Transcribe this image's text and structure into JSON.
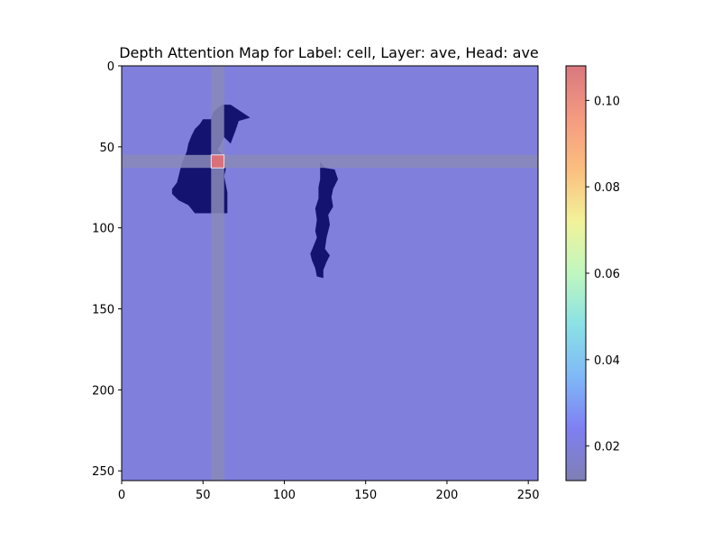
{
  "chart_data": {
    "type": "heatmap",
    "title": "Depth Attention Map for Label: cell, Layer: ave, Head: ave",
    "xlabel": "",
    "ylabel": "",
    "xlim": [
      0,
      256
    ],
    "ylim": [
      256,
      0
    ],
    "x_ticks": [
      0,
      50,
      100,
      150,
      200,
      250
    ],
    "y_ticks": [
      0,
      50,
      100,
      150,
      200,
      250
    ],
    "background_color": "#8080dc",
    "attention_value_background": 0.012,
    "highlight": {
      "row": 59,
      "col": 59,
      "value": 0.108,
      "crosshair_band_width": 8,
      "band_color": "#8a8ab8",
      "cell_color": "#d9707a"
    },
    "mask_regions": [
      {
        "name": "region-left",
        "color": "#141470",
        "outline": [
          [
            67,
            24
          ],
          [
            79,
            32
          ],
          [
            72,
            34
          ],
          [
            70,
            40
          ],
          [
            67,
            48
          ],
          [
            63,
            44
          ],
          [
            59,
            52
          ],
          [
            63,
            56
          ],
          [
            64,
            64
          ],
          [
            63,
            68
          ],
          [
            65,
            78
          ],
          [
            65,
            91
          ],
          [
            45,
            91
          ],
          [
            41,
            86
          ],
          [
            35,
            83
          ],
          [
            31,
            79
          ],
          [
            31,
            76
          ],
          [
            34,
            72
          ],
          [
            37,
            60
          ],
          [
            40,
            53
          ],
          [
            41,
            48
          ],
          [
            43,
            43
          ],
          [
            45,
            39
          ],
          [
            48,
            36
          ],
          [
            50,
            33
          ],
          [
            55,
            33
          ],
          [
            56,
            29
          ],
          [
            59,
            26
          ],
          [
            62,
            24
          ]
        ]
      },
      {
        "name": "region-right",
        "color": "#141470",
        "outline": [
          [
            122,
            59
          ],
          [
            125,
            63
          ],
          [
            131,
            64
          ],
          [
            133,
            70
          ],
          [
            130,
            76
          ],
          [
            129,
            81
          ],
          [
            130,
            87
          ],
          [
            127,
            92
          ],
          [
            128,
            98
          ],
          [
            126,
            106
          ],
          [
            125,
            113
          ],
          [
            128,
            117
          ],
          [
            126,
            121
          ],
          [
            124,
            126
          ],
          [
            124,
            131
          ],
          [
            120,
            130
          ],
          [
            119,
            125
          ],
          [
            117,
            120
          ],
          [
            116,
            116
          ],
          [
            118,
            111
          ],
          [
            120,
            106
          ],
          [
            119,
            102
          ],
          [
            120,
            95
          ],
          [
            119,
            88
          ],
          [
            121,
            82
          ],
          [
            121,
            75
          ],
          [
            122,
            70
          ],
          [
            122,
            66
          ]
        ]
      }
    ],
    "colorbar": {
      "range": [
        0.012,
        0.108
      ],
      "ticks": [
        0.02,
        0.04,
        0.06,
        0.08,
        0.1
      ],
      "tick_labels": [
        "0.02",
        "0.04",
        "0.06",
        "0.08",
        "0.10"
      ],
      "stops": [
        "#7f7fb4",
        "#7f7ff2",
        "#7fb8f7",
        "#8ae1e6",
        "#bff7bf",
        "#f2f299",
        "#fbbf7f",
        "#f49a80",
        "#d9787f"
      ]
    }
  }
}
